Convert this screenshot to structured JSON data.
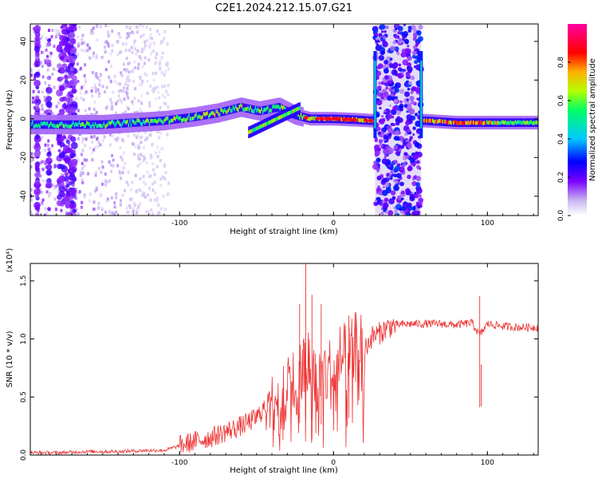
{
  "title": "C2E1.2024.212.15.07.G21",
  "chart_data": [
    {
      "type": "heatmap",
      "xlabel": "Height of straight line (km)",
      "ylabel": "Frequency (Hz)",
      "xlim": [
        -197,
        133
      ],
      "ylim": [
        -50,
        49
      ],
      "xticks": [
        -100,
        0,
        100
      ],
      "yticks": [
        -40,
        -20,
        0,
        20,
        40
      ],
      "colorbar": {
        "label": "Normalized spectral amplitude",
        "range": [
          0,
          1
        ],
        "ticks": [
          "0.0",
          "0.2",
          "0.4",
          "0.6",
          "0.8"
        ],
        "colors": [
          "#ffffff",
          "#b9a0f0",
          "#7a00ff",
          "#0000ff",
          "#00c8ff",
          "#00ff64",
          "#b4ff00",
          "#ffb000",
          "#ff0000",
          "#ff00a0"
        ]
      },
      "ridge": [
        {
          "x": -190,
          "y": -3,
          "amp": 0.55
        },
        {
          "x": -170,
          "y": -3,
          "amp": 0.6
        },
        {
          "x": -150,
          "y": -3,
          "amp": 0.6
        },
        {
          "x": -130,
          "y": -2,
          "amp": 0.6
        },
        {
          "x": -110,
          "y": -1,
          "amp": 0.62
        },
        {
          "x": -90,
          "y": 1,
          "amp": 0.65
        },
        {
          "x": -75,
          "y": 3,
          "amp": 0.7
        },
        {
          "x": -60,
          "y": 6,
          "amp": 0.7
        },
        {
          "x": -48,
          "y": 4,
          "amp": 0.6
        },
        {
          "x": -35,
          "y": 6,
          "amp": 0.65
        },
        {
          "x": -25,
          "y": 2,
          "amp": 0.7
        },
        {
          "x": -15,
          "y": 0,
          "amp": 0.8
        },
        {
          "x": 0,
          "y": 0,
          "amp": 0.9
        },
        {
          "x": 15,
          "y": -0.5,
          "amp": 0.9
        },
        {
          "x": 25,
          "y": -1,
          "amp": 0.85
        },
        {
          "x": 60,
          "y": -1,
          "amp": 0.85
        },
        {
          "x": 80,
          "y": -2,
          "amp": 0.9
        },
        {
          "x": 95,
          "y": -2,
          "amp": 0.85
        },
        {
          "x": 110,
          "y": -2,
          "amp": 0.65
        },
        {
          "x": 133,
          "y": -2,
          "amp": 0.6
        }
      ],
      "noise_band_x": [
        27,
        57
      ]
    },
    {
      "type": "line",
      "xlabel": "Height of straight line (km)",
      "ylabel": "SNR (10 * v/v)",
      "multiplier_label": "(x10⁴)",
      "xlim": [
        -197,
        133
      ],
      "ylim": [
        0,
        1.65
      ],
      "xticks": [
        -100,
        0,
        100
      ],
      "yticks": [
        "0.0",
        "0.5",
        "1.0",
        "1.5"
      ],
      "color": "#ee3333",
      "series": [
        {
          "x": [
            -197,
            -180,
            -160,
            -140,
            -120,
            -110,
            -100,
            -90,
            -80,
            -70,
            -60,
            -50,
            -40,
            -35,
            -30,
            -25,
            -20,
            -15,
            -10,
            -5,
            0,
            5,
            10,
            15,
            20,
            25,
            30,
            35,
            40,
            50,
            60,
            70,
            80,
            90,
            95,
            100,
            110,
            120,
            133
          ],
          "values": [
            0.02,
            0.02,
            0.03,
            0.03,
            0.04,
            0.04,
            0.08,
            0.12,
            0.15,
            0.2,
            0.25,
            0.32,
            0.5,
            0.55,
            0.65,
            0.6,
            0.75,
            0.8,
            0.62,
            0.72,
            0.7,
            0.85,
            0.8,
            0.95,
            0.9,
            1.02,
            1.05,
            1.1,
            1.12,
            1.13,
            1.13,
            1.13,
            1.12,
            1.14,
            1.03,
            1.13,
            1.11,
            1.1,
            1.1
          ],
          "spikes": [
            {
              "x": -18,
              "y": 1.65
            },
            {
              "x": -14,
              "y": 1.38
            },
            {
              "x": -22,
              "y": 1.3
            },
            {
              "x": -8,
              "y": 1.3
            },
            {
              "x": 10,
              "y": 1.2
            },
            {
              "x": 95,
              "y": 1.37
            },
            {
              "x": 96,
              "y": 0.78
            }
          ]
        }
      ]
    }
  ]
}
